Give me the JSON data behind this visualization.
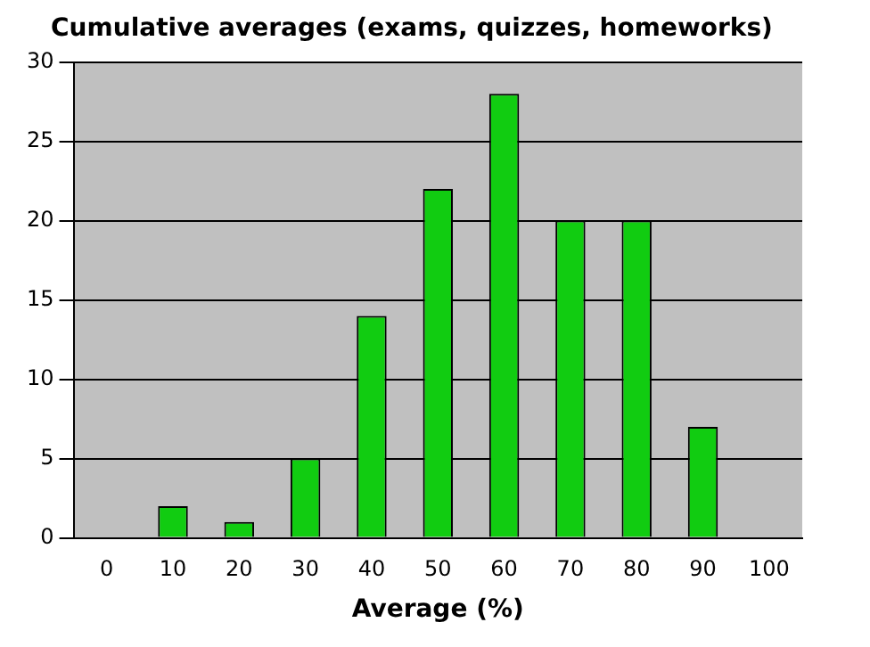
{
  "chart_data": {
    "type": "bar",
    "title": "Cumulative averages (exams, quizzes, homeworks)",
    "xlabel": "Average (%)",
    "categories": [
      "0",
      "10",
      "20",
      "30",
      "40",
      "50",
      "60",
      "70",
      "80",
      "90",
      "100"
    ],
    "values": [
      0,
      2,
      1,
      5,
      14,
      22,
      28,
      20,
      20,
      7,
      0
    ],
    "color": "#11cc11",
    "ylim": [
      0,
      30
    ],
    "yticks": [
      0,
      5,
      10,
      15,
      20,
      25,
      30
    ],
    "grid": "y",
    "legend": false
  }
}
